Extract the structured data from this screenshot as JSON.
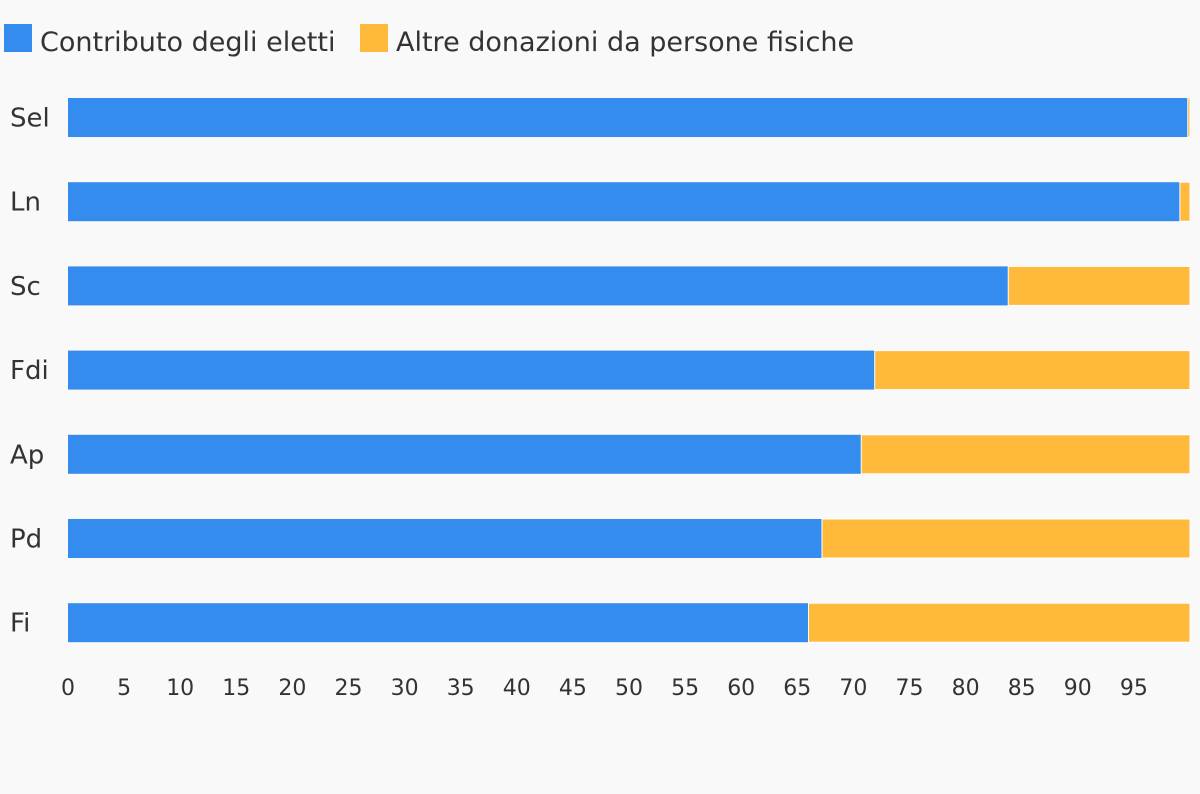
{
  "chart_data": {
    "type": "bar",
    "orientation": "horizontal",
    "stacked": true,
    "categories": [
      "Sel",
      "Ln",
      "Sc",
      "Fdi",
      "Ap",
      "Pd",
      "Fi"
    ],
    "series": [
      {
        "name": "Contributo degli eletti",
        "color": "#348cef",
        "values": [
          99.8,
          99.1,
          83.8,
          71.9,
          70.7,
          67.2,
          66.0
        ]
      },
      {
        "name": "Altre donazioni da persone fisiche",
        "color": "#ffb93b",
        "values": [
          0.2,
          0.9,
          16.2,
          28.1,
          29.3,
          32.8,
          34.0
        ]
      }
    ],
    "xlim": [
      0,
      100
    ],
    "x_ticks": [
      "0",
      "5",
      "10",
      "15",
      "20",
      "25",
      "30",
      "35",
      "40",
      "45",
      "50",
      "55",
      "60",
      "65",
      "70",
      "75",
      "80",
      "85",
      "90",
      "95"
    ],
    "legend_position": "top-left",
    "grid": false
  }
}
